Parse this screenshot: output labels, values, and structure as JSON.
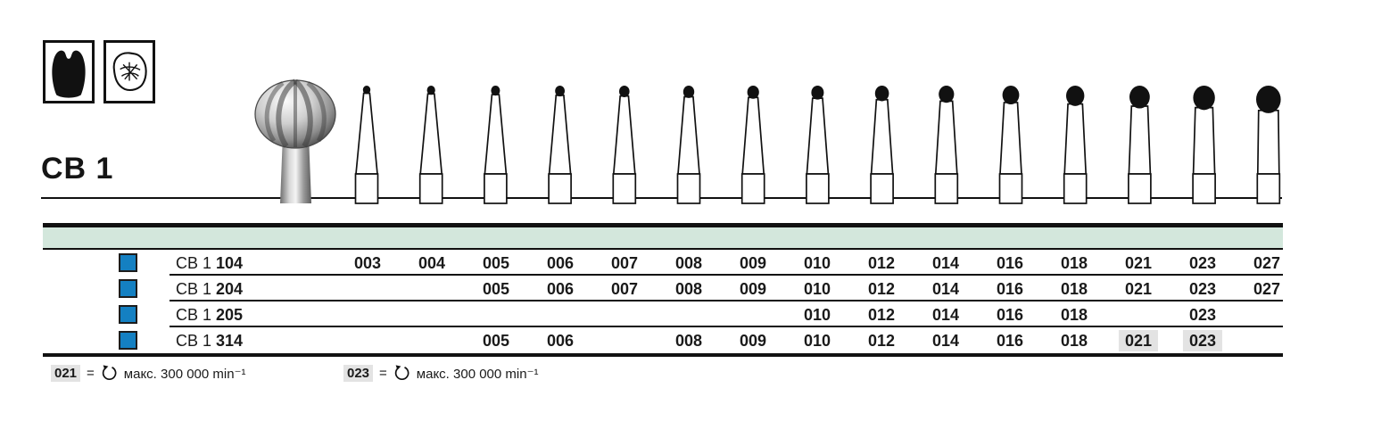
{
  "header": {
    "series": "CB 1"
  },
  "indication_icons": [
    {
      "name": "tooth-crown-silhouette-icon"
    },
    {
      "name": "tooth-occlusal-view-icon"
    }
  ],
  "size_row": {
    "sizes": [
      "003",
      "004",
      "005",
      "006",
      "007",
      "008",
      "009",
      "010",
      "012",
      "014",
      "016",
      "018",
      "021",
      "023",
      "027"
    ]
  },
  "table": {
    "band_color": "#d3e7dc",
    "accent_color": "#1480c2",
    "highlight_color": "#e3e3e3",
    "columns": [
      "003",
      "004",
      "005",
      "006",
      "007",
      "008",
      "009",
      "010",
      "012",
      "014",
      "016",
      "018",
      "021",
      "023",
      "027"
    ],
    "rows": [
      {
        "series": "CB 1",
        "code": "104",
        "cells": [
          "003",
          "004",
          "005",
          "006",
          "007",
          "008",
          "009",
          "010",
          "012",
          "014",
          "016",
          "018",
          "021",
          "023",
          "027"
        ],
        "highlighted": []
      },
      {
        "series": "CB 1",
        "code": "204",
        "cells": [
          null,
          null,
          "005",
          "006",
          "007",
          "008",
          "009",
          "010",
          "012",
          "014",
          "016",
          "018",
          "021",
          "023",
          "027"
        ],
        "highlighted": []
      },
      {
        "series": "CB 1",
        "code": "205",
        "cells": [
          null,
          null,
          null,
          null,
          null,
          null,
          null,
          "010",
          "012",
          "014",
          "016",
          "018",
          null,
          "023",
          null
        ],
        "highlighted": []
      },
      {
        "series": "CB 1",
        "code": "314",
        "cells": [
          null,
          null,
          "005",
          "006",
          null,
          "008",
          "009",
          "010",
          "012",
          "014",
          "016",
          "018",
          "021",
          "023",
          null
        ],
        "highlighted": [
          "021",
          "023"
        ]
      }
    ]
  },
  "footnotes": [
    {
      "size": "021",
      "equals": "=",
      "icon": "rotation-speed-icon",
      "text": "макс. 300 000 min⁻¹"
    },
    {
      "size": "023",
      "equals": "=",
      "icon": "rotation-speed-icon",
      "text": "макс. 300 000 min⁻¹"
    }
  ]
}
